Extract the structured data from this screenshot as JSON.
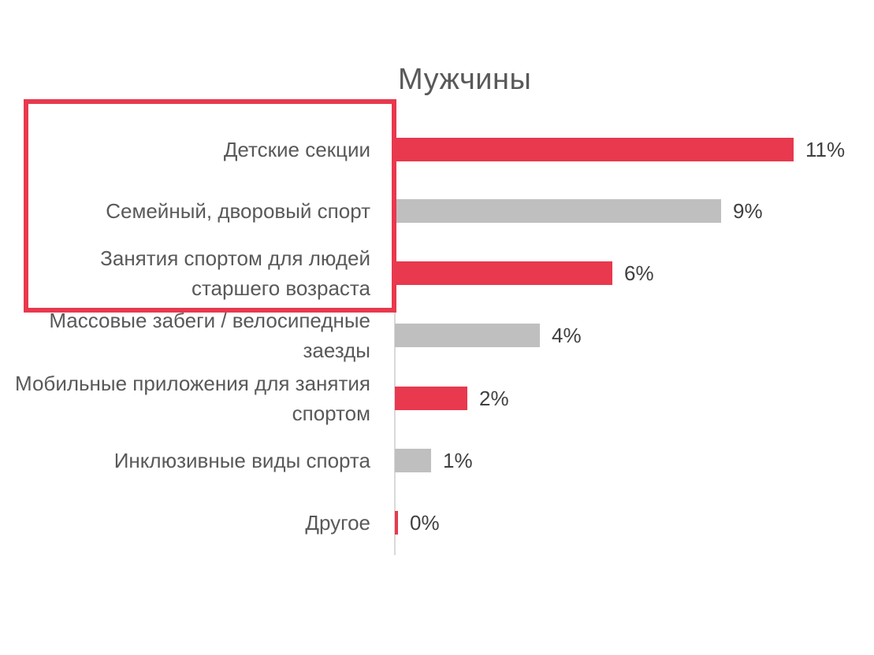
{
  "title": "Мужчины",
  "colors": {
    "accent_red": "#e8394e",
    "bar_gray": "#bfbfbf",
    "axis_gray": "#d9d9d9",
    "label_text": "#595959",
    "value_text": "#404040",
    "background": "#ffffff"
  },
  "chart_data": {
    "type": "bar",
    "orientation": "horizontal",
    "title": "Мужчины",
    "categories": [
      "Детские секции",
      "Семейный, дворовый спорт",
      "Занятия спортом для людей старшего возраста",
      "Массовые забеги / велосипедные заезды",
      "Мобильные приложения для занятия спортом",
      "Инклюзивные виды спорта",
      "Другое"
    ],
    "values": [
      11,
      9,
      6,
      4,
      2,
      1,
      0
    ],
    "value_labels": [
      "11%",
      "9%",
      "6%",
      "4%",
      "2%",
      "1%",
      "0%"
    ],
    "bar_colors": [
      "#e8394e",
      "#bfbfbf",
      "#e8394e",
      "#bfbfbf",
      "#e8394e",
      "#bfbfbf",
      "#e8394e"
    ],
    "xlim": [
      0,
      11
    ],
    "xlabel": "",
    "ylabel": "",
    "grid": false,
    "legend": false,
    "data_labels": true
  },
  "annotation": {
    "type": "highlight-box",
    "color": "#e8394e",
    "highlights_categories": [
      "Детские секции",
      "Семейный, дворовый спорт",
      "Занятия спортом для людей старшего возраста"
    ]
  }
}
